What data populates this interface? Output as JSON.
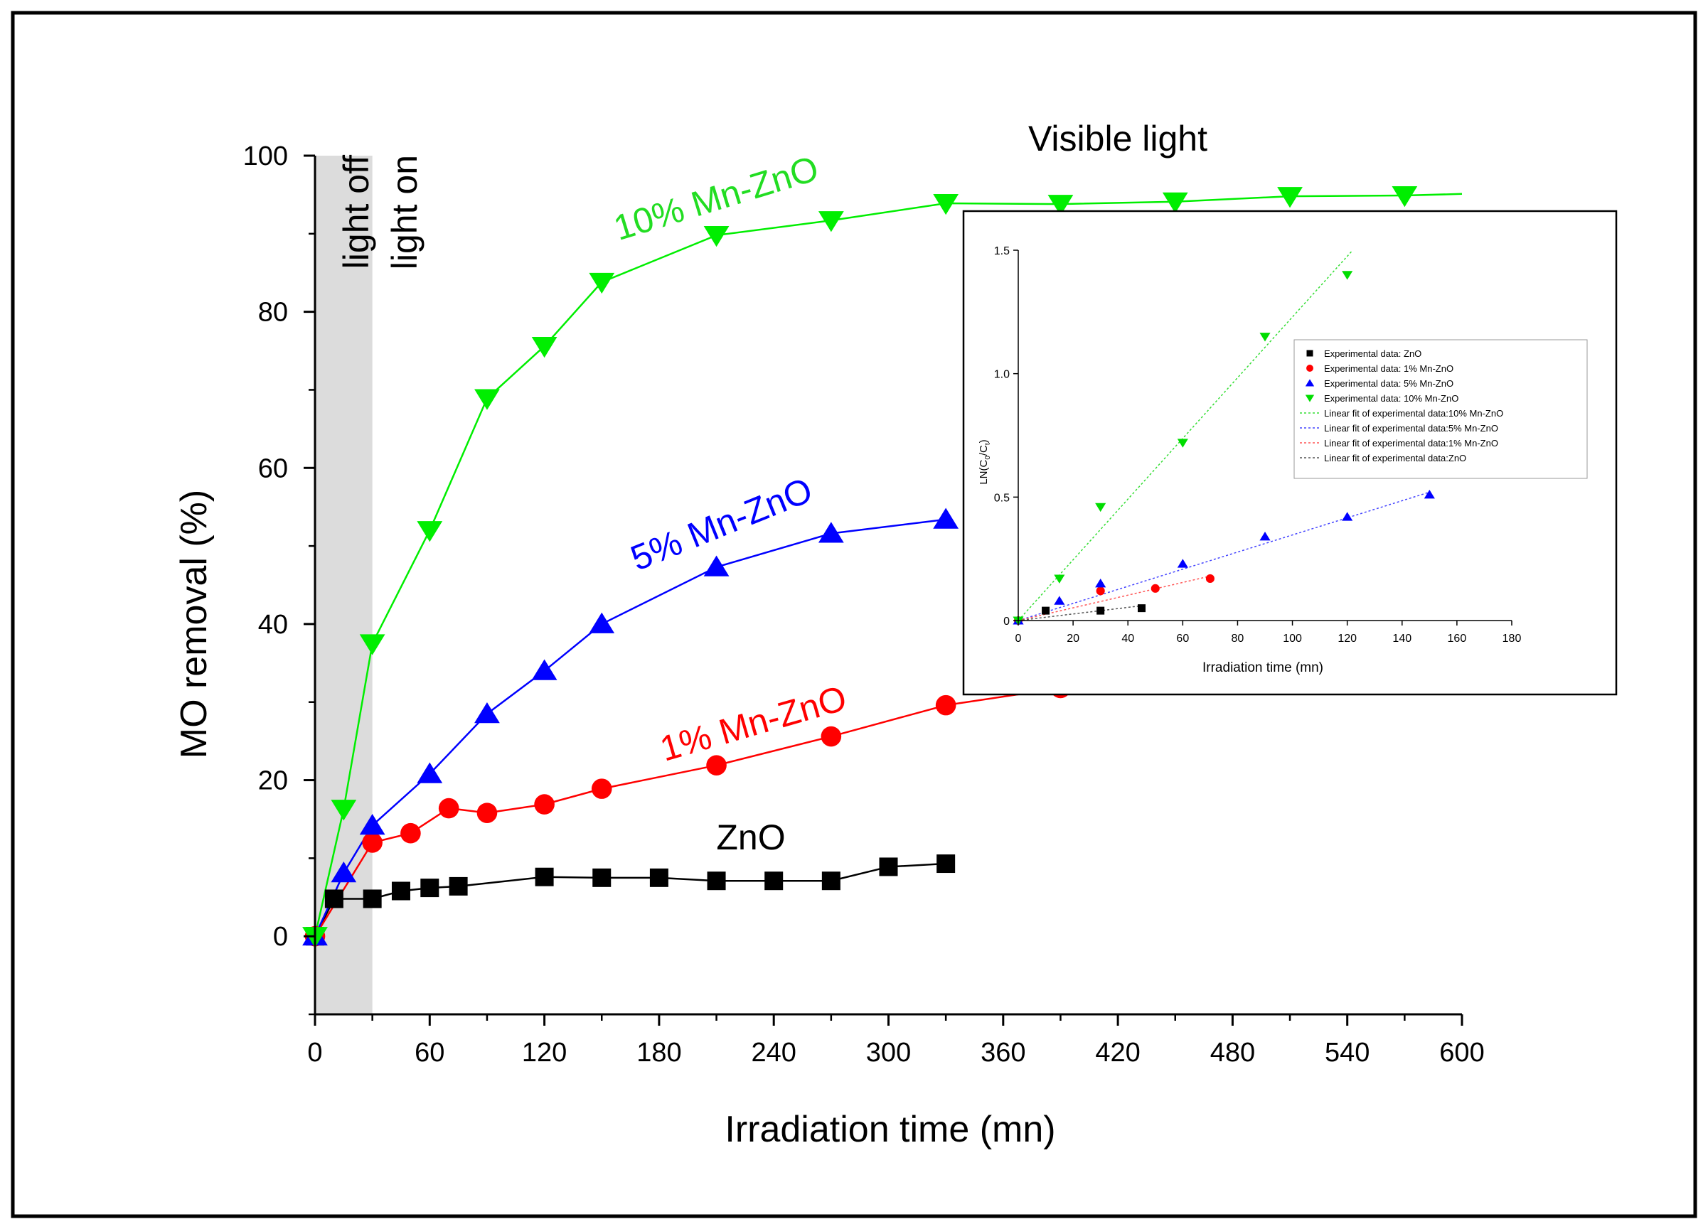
{
  "figure": {
    "frame_color": "#000000",
    "background": "#ffffff"
  },
  "chart_data": [
    {
      "id": "main",
      "type": "line",
      "title": "Visible light",
      "xlabel": "Irradiation time (mn)",
      "ylabel": "MO removal (%)",
      "xlim": [
        0,
        600
      ],
      "ylim": [
        -10,
        100
      ],
      "xticks": [
        0,
        60,
        120,
        180,
        240,
        300,
        360,
        420,
        480,
        540,
        600
      ],
      "yticks": [
        0,
        20,
        40,
        60,
        80,
        100
      ],
      "grid": false,
      "shaded_region": {
        "x": [
          0,
          30
        ],
        "labels": [
          "light off",
          "light on"
        ],
        "color": "#dcdcdc"
      },
      "series": [
        {
          "name": "ZnO",
          "label": "ZnO",
          "color": "#000000",
          "label_color": "#000000",
          "marker": "square",
          "x": [
            0,
            10,
            30,
            45,
            60,
            75,
            120,
            150,
            180,
            210,
            240,
            270,
            300,
            330
          ],
          "y": [
            0,
            4.8,
            4.8,
            5.8,
            6.2,
            6.4,
            7.6,
            7.5,
            7.5,
            7.1,
            7.1,
            7.1,
            8.9,
            9.3
          ]
        },
        {
          "name": "1% Mn-ZnO",
          "label": "1% Mn-ZnO",
          "color": "#ff0000",
          "label_color": "#ff0000",
          "marker": "circle",
          "x": [
            0,
            30,
            50,
            70,
            90,
            120,
            150,
            210,
            270,
            330,
            390
          ],
          "y": [
            0,
            12,
            13.2,
            16.4,
            15.8,
            16.9,
            18.9,
            21.9,
            25.6,
            29.6,
            31.8
          ]
        },
        {
          "name": "5% Mn-ZnO",
          "label": "5% Mn-ZnO",
          "color": "#0000ff",
          "label_color": "#0000ff",
          "marker": "triangle-up",
          "x": [
            0,
            15,
            30,
            60,
            90,
            120,
            150,
            210,
            270,
            330
          ],
          "y": [
            0,
            8.1,
            14.2,
            20.8,
            28.5,
            34,
            40,
            47.3,
            51.6,
            53.4
          ]
        },
        {
          "name": "10% Mn-ZnO",
          "label": "10% Mn-ZnO",
          "color": "#00ee00",
          "label_color": "#22dd22",
          "marker": "triangle-down",
          "x": [
            0,
            15,
            30,
            60,
            90,
            120,
            150,
            210,
            270,
            330,
            390,
            450,
            510,
            570,
            600
          ],
          "y": [
            0,
            16.3,
            37.5,
            52,
            68.9,
            75.6,
            83.8,
            89.8,
            91.7,
            93.9,
            93.8,
            94.1,
            94.8,
            94.9,
            95.1
          ]
        }
      ]
    },
    {
      "id": "inset",
      "type": "scatter",
      "xlabel": "Irradiation time (mn)",
      "ylabel_parts": [
        "LN(C",
        "0",
        "/C",
        "t",
        ")"
      ],
      "xlim": [
        0,
        180
      ],
      "ylim": [
        0,
        1.5
      ],
      "xticks": [
        0,
        20,
        40,
        60,
        80,
        100,
        120,
        140,
        160,
        180
      ],
      "ytick_labels": [
        "0",
        "0.5",
        "1.0",
        "1.5"
      ],
      "ytick_values": [
        0,
        0.5,
        1.0,
        1.5
      ],
      "legend_position": "upper-right",
      "series": [
        {
          "name": "Experimental data: ZnO",
          "color": "#000000",
          "marker": "square",
          "x": [
            0,
            10,
            30,
            45
          ],
          "y": [
            0,
            0.04,
            0.04,
            0.05
          ]
        },
        {
          "name": "Experimental data: 1% Mn-ZnO",
          "color": "#ff0000",
          "marker": "circle",
          "x": [
            0,
            30,
            50,
            70
          ],
          "y": [
            0,
            0.12,
            0.13,
            0.17
          ]
        },
        {
          "name": "Experimental data: 5% Mn-ZnO",
          "color": "#0000ff",
          "marker": "triangle-up",
          "x": [
            0,
            15,
            30,
            60,
            90,
            120,
            150
          ],
          "y": [
            0,
            0.08,
            0.15,
            0.23,
            0.34,
            0.42,
            0.51
          ]
        },
        {
          "name": "Experimental data: 10% Mn-ZnO",
          "color": "#00dd00",
          "marker": "triangle-down",
          "x": [
            0,
            15,
            30,
            60,
            90,
            120
          ],
          "y": [
            0,
            0.17,
            0.46,
            0.72,
            1.15,
            1.4
          ]
        }
      ],
      "fits": [
        {
          "name": "Linear fit of experimental data:10% Mn-ZnO",
          "color": "#33dd33",
          "x": [
            0,
            122
          ],
          "y": [
            0,
            1.5
          ]
        },
        {
          "name": "Linear fit of experimental data:5% Mn-ZnO",
          "color": "#4444ff",
          "x": [
            0,
            150
          ],
          "y": [
            0,
            0.52
          ]
        },
        {
          "name": "Linear fit of experimental data:1% Mn-ZnO",
          "color": "#ff5555",
          "x": [
            0,
            70
          ],
          "y": [
            0,
            0.18
          ]
        },
        {
          "name": "Linear fit of experimental data:ZnO",
          "color": "#555555",
          "x": [
            0,
            45
          ],
          "y": [
            0,
            0.06
          ]
        }
      ]
    }
  ]
}
